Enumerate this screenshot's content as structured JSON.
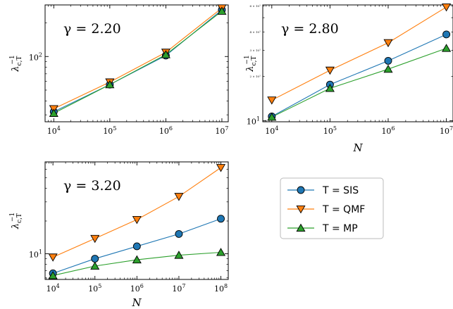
{
  "chart_data": [
    {
      "type": "line",
      "annotation": "γ = 2.20",
      "xlabel": "",
      "ylabel": "λ_{c,T}^{-1}",
      "xscale": "log",
      "yscale": "log",
      "xlim": [
        7000,
        13000000
      ],
      "ylim": [
        26,
        290
      ],
      "xticks": [
        10000,
        100000,
        1000000,
        10000000
      ],
      "xticklabels": [
        "10^4",
        "10^5",
        "10^6",
        "10^7"
      ],
      "yticks": [
        100
      ],
      "yticklabels": [
        "10^2"
      ],
      "x": [
        10000,
        100000,
        1000000,
        10000000
      ],
      "series": [
        {
          "name": "T = SIS",
          "values": [
            32,
            56,
            102,
            262
          ]
        },
        {
          "name": "T = QMF",
          "values": [
            34,
            59,
            109,
            272
          ]
        },
        {
          "name": "T = MP",
          "values": [
            31,
            56,
            104,
            255
          ]
        }
      ]
    },
    {
      "type": "line",
      "annotation": "γ = 2.80",
      "xlabel": "N",
      "ylabel": "λ_{c,T}^{-1}",
      "xscale": "log",
      "yscale": "log",
      "xlim": [
        7000,
        13000000
      ],
      "ylim": [
        9.85,
        61
      ],
      "xticks": [
        10000,
        100000,
        1000000,
        10000000
      ],
      "xticklabels": [
        "10^4",
        "10^5",
        "10^6",
        "10^7"
      ],
      "yticks": [
        10
      ],
      "yticklabels": [
        "10^1"
      ],
      "yminorlabels": [
        {
          "v": 20,
          "label": "2 × 10^1"
        },
        {
          "v": 30,
          "label": "3 × 10^1"
        },
        {
          "v": 40,
          "label": "4 × 10^1"
        },
        {
          "v": 60,
          "label": "6 × 10^1"
        }
      ],
      "x": [
        10000,
        100000,
        1000000,
        10000000
      ],
      "series": [
        {
          "name": "T = SIS",
          "values": [
            10.7,
            17.6,
            25.5,
            38.5
          ]
        },
        {
          "name": "T = QMF",
          "values": [
            13.8,
            22.0,
            33.8,
            59.0
          ]
        },
        {
          "name": "T = MP",
          "values": [
            10.6,
            16.6,
            22.4,
            31.0
          ]
        }
      ]
    },
    {
      "type": "line",
      "annotation": "γ = 3.20",
      "xlabel": "N",
      "ylabel": "λ_{c,T}^{-1}",
      "xscale": "log",
      "yscale": "log",
      "xlim": [
        6500,
        150000000
      ],
      "ylim": [
        5.8,
        70
      ],
      "xticks": [
        10000,
        100000,
        1000000,
        10000000,
        100000000
      ],
      "xticklabels": [
        "10^4",
        "10^5",
        "10^6",
        "10^7",
        "10^8"
      ],
      "yticks": [
        10
      ],
      "yticklabels": [
        "10^1"
      ],
      "x": [
        10000,
        100000,
        1000000,
        10000000,
        100000000
      ],
      "series": [
        {
          "name": "T = SIS",
          "values": [
            6.6,
            9.0,
            11.7,
            15.2,
            21.0
          ]
        },
        {
          "name": "T = QMF",
          "values": [
            9.3,
            13.8,
            20.6,
            33.6,
            62.0
          ]
        },
        {
          "name": "T = MP",
          "values": [
            6.3,
            7.7,
            8.8,
            9.7,
            10.3
          ]
        }
      ]
    }
  ],
  "legend": {
    "placement": "right of bottom-left panel",
    "entries": [
      {
        "label": "T = SIS",
        "color": "#1f77b4",
        "marker": "circle"
      },
      {
        "label": "T = QMF",
        "color": "#ff7f0e",
        "marker": "triangle-down"
      },
      {
        "label": "T = MP",
        "color": "#2ca02c",
        "marker": "triangle-up"
      }
    ]
  }
}
